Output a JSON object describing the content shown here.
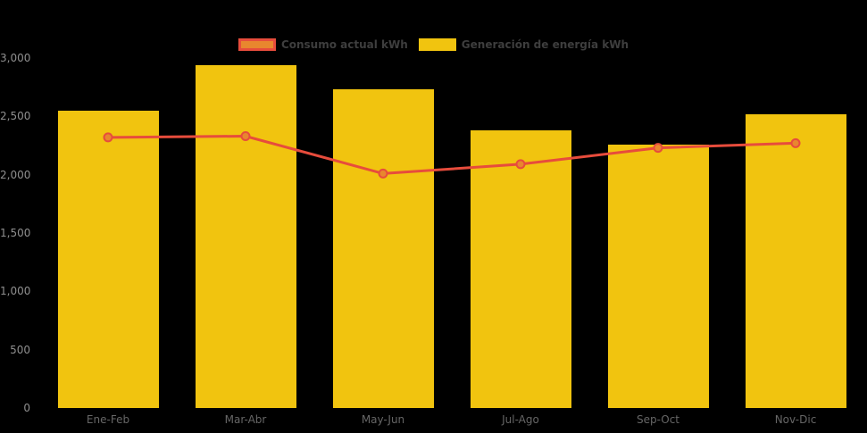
{
  "legend": {
    "items": [
      {
        "label": "Consumo actual kWh",
        "fill": "#E8872E",
        "border": "#E74C3C"
      },
      {
        "label": "Generación de energía kWh",
        "fill": "#F1C40F",
        "border": "#F1C40F"
      }
    ]
  },
  "chart_data": {
    "type": "bar",
    "title": "",
    "xlabel": "",
    "ylabel": "",
    "categories": [
      "Ene-Feb",
      "Mar-Abr",
      "May-Jun",
      "Jul-Ago",
      "Sep-Oct",
      "Nov-Dic"
    ],
    "series": [
      {
        "name": "Generación de energía kWh",
        "type": "bar",
        "color": "#F1C40F",
        "values": [
          2550,
          2940,
          2730,
          2380,
          2260,
          2520
        ]
      },
      {
        "name": "Consumo actual kWh",
        "type": "line",
        "color": "#E74C3C",
        "marker_color": "#E8872E",
        "values": [
          2320,
          2330,
          2010,
          2090,
          2230,
          2270
        ]
      }
    ],
    "ylim": [
      0,
      3000
    ],
    "ytick_step": 500,
    "ytick_labels": [
      "0",
      "500",
      "1,000",
      "1,500",
      "2,000",
      "2,500",
      "3,000"
    ],
    "grid": false,
    "legend_position": "top",
    "background": "#000000"
  },
  "colors": {
    "background": "#000000",
    "bar": "#F1C40F",
    "line": "#E74C3C",
    "marker_fill": "#E8872E",
    "y_tick_text": "#8F8F8F",
    "x_tick_text": "#666666",
    "legend_text": "#3E3E3E"
  }
}
